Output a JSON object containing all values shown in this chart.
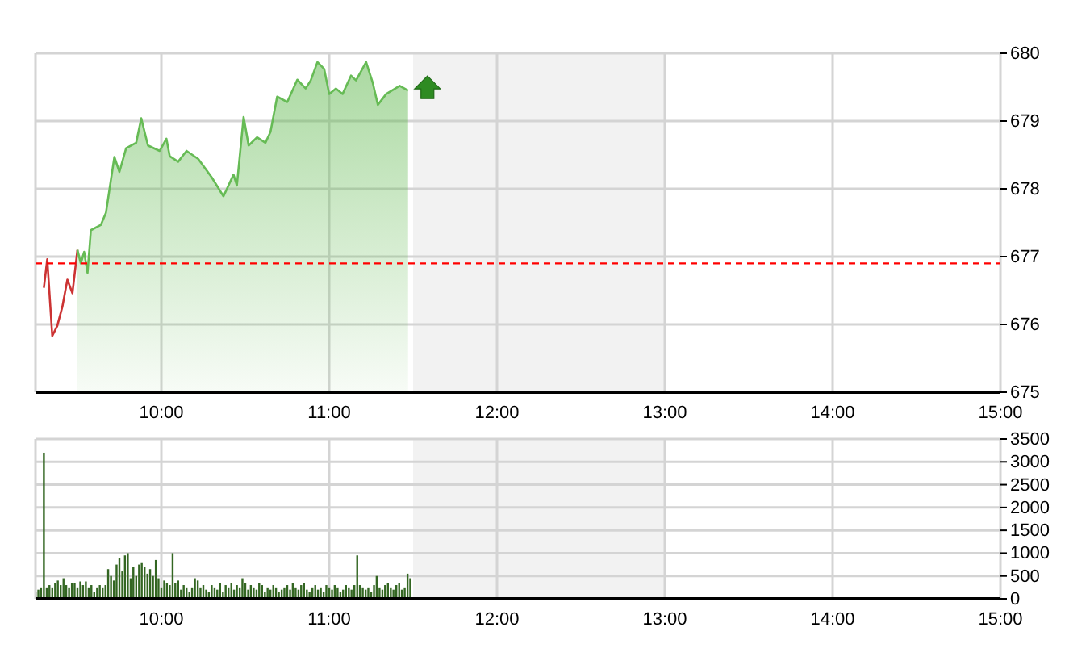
{
  "chart_data": [
    {
      "type": "area",
      "xlim": [
        9.25,
        15
      ],
      "xticks": [
        {
          "value": 10,
          "label": "10:00"
        },
        {
          "value": 11,
          "label": "11:00"
        },
        {
          "value": 12,
          "label": "12:00"
        },
        {
          "value": 13,
          "label": "13:00"
        },
        {
          "value": 14,
          "label": "14:00"
        },
        {
          "value": 15,
          "label": "15:00"
        }
      ],
      "ylim": [
        675,
        680
      ],
      "yticks": [
        675,
        676,
        677,
        678,
        679,
        680
      ],
      "grid": true,
      "bands": [
        {
          "axis": "x",
          "from": 11.5,
          "to": 13,
          "color": "#f2f2f2"
        }
      ],
      "ref_lines": [
        {
          "axis": "y",
          "value": 676.9,
          "color": "#ff0000",
          "line_style": "dashed"
        }
      ],
      "series": [
        {
          "type": "line",
          "color": "#cc3333",
          "x": [
            9.3,
            9.32,
            9.35,
            9.38,
            9.41,
            9.44,
            9.47,
            9.5
          ],
          "values": [
            676.54,
            676.96,
            675.83,
            675.98,
            676.26,
            676.66,
            676.46,
            677.1
          ]
        },
        {
          "type": "area",
          "color": "#66bb55",
          "x": [
            9.5,
            9.52,
            9.54,
            9.56,
            9.58,
            9.64,
            9.67,
            9.72,
            9.75,
            9.79,
            9.85,
            9.88,
            9.92,
            9.99,
            10.03,
            10.05,
            10.1,
            10.15,
            10.22,
            10.3,
            10.37,
            10.43,
            10.45,
            10.49,
            10.52,
            10.57,
            10.62,
            10.65,
            10.69,
            10.75,
            10.81,
            10.86,
            10.89,
            10.93,
            10.97,
            11.0,
            11.04,
            11.08,
            11.13,
            11.16,
            11.22,
            11.26,
            11.29,
            11.34,
            11.42,
            11.47
          ],
          "values": [
            677.1,
            676.9,
            677.07,
            676.76,
            677.39,
            677.47,
            677.65,
            678.47,
            678.25,
            678.6,
            678.68,
            679.04,
            678.64,
            678.56,
            678.74,
            678.48,
            678.4,
            678.56,
            678.44,
            678.17,
            677.89,
            678.21,
            678.05,
            679.06,
            678.64,
            678.76,
            678.68,
            678.84,
            679.36,
            679.28,
            679.61,
            679.48,
            679.6,
            679.87,
            679.77,
            679.4,
            679.48,
            679.4,
            679.67,
            679.6,
            679.87,
            679.56,
            679.24,
            679.4,
            679.52,
            679.45
          ]
        }
      ]
    },
    {
      "type": "bar",
      "xlim": [
        9.25,
        15
      ],
      "xticks": [
        {
          "value": 10,
          "label": "10:00"
        },
        {
          "value": 11,
          "label": "11:00"
        },
        {
          "value": 12,
          "label": "12:00"
        },
        {
          "value": 13,
          "label": "13:00"
        },
        {
          "value": 14,
          "label": "14:00"
        },
        {
          "value": 15,
          "label": "15:00"
        }
      ],
      "ylim": [
        0,
        3500
      ],
      "yticks": [
        0,
        500,
        1000,
        1500,
        2000,
        2500,
        3000,
        3500
      ],
      "grid": true,
      "bands": [
        {
          "axis": "x",
          "from": 11.5,
          "to": 13,
          "color": "#f2f2f2"
        }
      ],
      "series": [
        {
          "type": "bar",
          "color": "#336622",
          "x": [
            9.25,
            9.267,
            9.283,
            9.3,
            9.317,
            9.333,
            9.35,
            9.367,
            9.383,
            9.4,
            9.417,
            9.433,
            9.45,
            9.467,
            9.483,
            9.5,
            9.517,
            9.533,
            9.55,
            9.567,
            9.583,
            9.6,
            9.617,
            9.633,
            9.65,
            9.667,
            9.683,
            9.7,
            9.717,
            9.733,
            9.75,
            9.767,
            9.783,
            9.8,
            9.817,
            9.833,
            9.85,
            9.867,
            9.883,
            9.9,
            9.917,
            9.933,
            9.95,
            9.967,
            9.983,
            10.0,
            10.017,
            10.033,
            10.05,
            10.067,
            10.083,
            10.1,
            10.117,
            10.133,
            10.15,
            10.167,
            10.183,
            10.2,
            10.217,
            10.233,
            10.25,
            10.267,
            10.283,
            10.3,
            10.317,
            10.333,
            10.35,
            10.367,
            10.383,
            10.4,
            10.417,
            10.433,
            10.45,
            10.467,
            10.483,
            10.5,
            10.517,
            10.533,
            10.55,
            10.567,
            10.583,
            10.6,
            10.617,
            10.633,
            10.65,
            10.667,
            10.683,
            10.7,
            10.717,
            10.733,
            10.75,
            10.767,
            10.783,
            10.8,
            10.817,
            10.833,
            10.85,
            10.867,
            10.883,
            10.9,
            10.917,
            10.933,
            10.95,
            10.967,
            10.983,
            11.0,
            11.017,
            11.033,
            11.05,
            11.067,
            11.083,
            11.1,
            11.117,
            11.133,
            11.15,
            11.167,
            11.183,
            11.2,
            11.217,
            11.233,
            11.25,
            11.267,
            11.283,
            11.3,
            11.317,
            11.333,
            11.35,
            11.367,
            11.383,
            11.4,
            11.417,
            11.433,
            11.45,
            11.467,
            11.483
          ],
          "values": [
            150,
            200,
            250,
            3200,
            250,
            300,
            250,
            350,
            400,
            300,
            450,
            300,
            250,
            350,
            350,
            250,
            380,
            300,
            380,
            250,
            300,
            150,
            250,
            300,
            250,
            300,
            650,
            500,
            400,
            750,
            900,
            600,
            950,
            1000,
            450,
            700,
            500,
            750,
            800,
            700,
            550,
            650,
            500,
            850,
            450,
            250,
            400,
            350,
            300,
            1000,
            350,
            400,
            200,
            300,
            250,
            150,
            250,
            450,
            400,
            250,
            300,
            200,
            150,
            300,
            250,
            200,
            350,
            150,
            300,
            250,
            350,
            200,
            300,
            250,
            450,
            350,
            200,
            300,
            250,
            200,
            350,
            300,
            150,
            250,
            200,
            300,
            250,
            150,
            200,
            250,
            300,
            200,
            350,
            250,
            200,
            300,
            350,
            200,
            150,
            250,
            300,
            200,
            250,
            150,
            300,
            250,
            200,
            300,
            250,
            150,
            200,
            300,
            250,
            200,
            300,
            950,
            300,
            250,
            200,
            250,
            150,
            300,
            500,
            250,
            200,
            300,
            350,
            250,
            200,
            300,
            350,
            200,
            250,
            550,
            450
          ]
        }
      ]
    }
  ]
}
